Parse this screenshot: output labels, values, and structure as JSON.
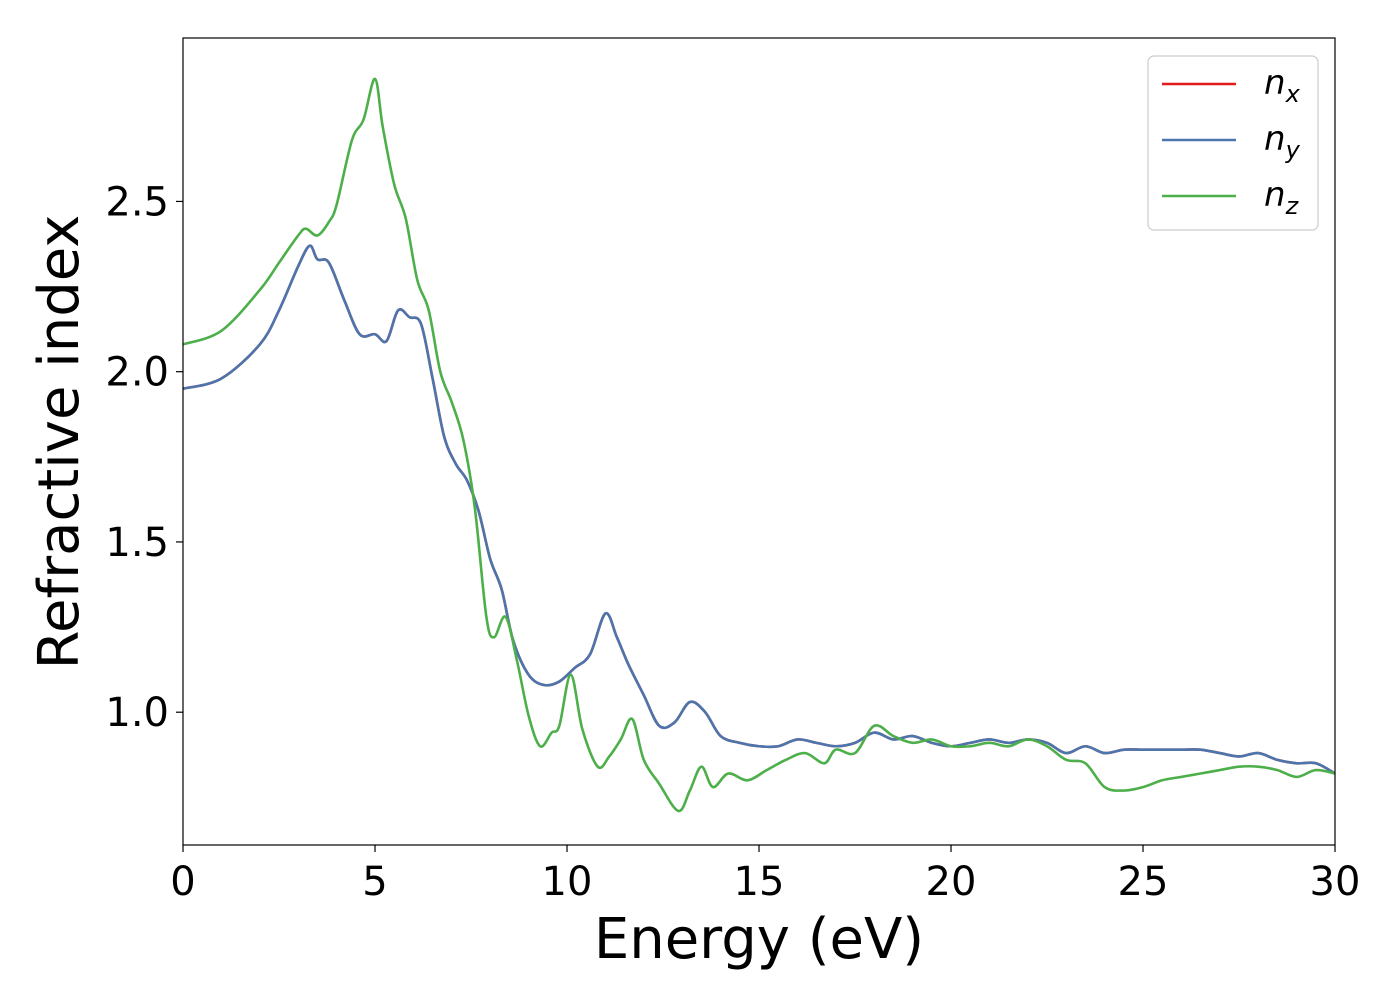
{
  "chart_data": {
    "type": "line",
    "xlabel": "Energy (eV)",
    "ylabel": "Refractive index",
    "xlim": [
      0,
      30
    ],
    "ylim": [
      0.61,
      2.98
    ],
    "xticks": [
      0,
      5,
      10,
      15,
      20,
      25,
      30
    ],
    "xtick_labels": [
      "0",
      "5",
      "10",
      "15",
      "20",
      "25",
      "30"
    ],
    "yticks": [
      1.0,
      1.5,
      2.0,
      2.5
    ],
    "ytick_labels": [
      "1.0",
      "1.5",
      "2.0",
      "2.5"
    ],
    "grid": false,
    "legend_position": "top-right",
    "series": [
      {
        "name": "n_x",
        "base": "n",
        "sub": "x",
        "color": "#e31a1c",
        "x": [
          0,
          1,
          2,
          2.5,
          3,
          3.3,
          3.5,
          3.8,
          4.2,
          4.6,
          5.0,
          5.3,
          5.6,
          5.9,
          6.2,
          6.5,
          6.8,
          7.1,
          7.4,
          7.7,
          8.0,
          8.3,
          8.6,
          9.0,
          9.4,
          9.8,
          10.2,
          10.6,
          11.0,
          11.3,
          11.6,
          12.0,
          12.4,
          12.8,
          13.2,
          13.6,
          14.0,
          14.5,
          15.0,
          15.5,
          16.0,
          16.5,
          17.0,
          17.5,
          18.0,
          18.5,
          19.0,
          19.5,
          20.0,
          20.5,
          21.0,
          21.5,
          22.0,
          22.5,
          23.0,
          23.5,
          24.0,
          24.5,
          25.0,
          25.5,
          26.0,
          26.5,
          27.0,
          27.5,
          28.0,
          28.5,
          29.0,
          29.5,
          30.0
        ],
        "y": [
          1.95,
          1.98,
          2.08,
          2.18,
          2.31,
          2.37,
          2.33,
          2.32,
          2.21,
          2.11,
          2.11,
          2.09,
          2.18,
          2.16,
          2.14,
          1.98,
          1.81,
          1.73,
          1.68,
          1.59,
          1.45,
          1.36,
          1.21,
          1.11,
          1.08,
          1.09,
          1.13,
          1.17,
          1.29,
          1.22,
          1.14,
          1.05,
          0.96,
          0.97,
          1.03,
          1.0,
          0.93,
          0.91,
          0.9,
          0.9,
          0.92,
          0.91,
          0.9,
          0.91,
          0.94,
          0.92,
          0.93,
          0.91,
          0.9,
          0.91,
          0.92,
          0.91,
          0.92,
          0.91,
          0.88,
          0.9,
          0.88,
          0.89,
          0.89,
          0.89,
          0.89,
          0.89,
          0.88,
          0.87,
          0.88,
          0.86,
          0.85,
          0.85,
          0.82
        ]
      },
      {
        "name": "n_y",
        "base": "n",
        "sub": "y",
        "color": "#4a76ad",
        "x": [
          0,
          1,
          2,
          2.5,
          3,
          3.3,
          3.5,
          3.8,
          4.2,
          4.6,
          5.0,
          5.3,
          5.6,
          5.9,
          6.2,
          6.5,
          6.8,
          7.1,
          7.4,
          7.7,
          8.0,
          8.3,
          8.6,
          9.0,
          9.4,
          9.8,
          10.2,
          10.6,
          11.0,
          11.3,
          11.6,
          12.0,
          12.4,
          12.8,
          13.2,
          13.6,
          14.0,
          14.5,
          15.0,
          15.5,
          16.0,
          16.5,
          17.0,
          17.5,
          18.0,
          18.5,
          19.0,
          19.5,
          20.0,
          20.5,
          21.0,
          21.5,
          22.0,
          22.5,
          23.0,
          23.5,
          24.0,
          24.5,
          25.0,
          25.5,
          26.0,
          26.5,
          27.0,
          27.5,
          28.0,
          28.5,
          29.0,
          29.5,
          30.0
        ],
        "y": [
          1.95,
          1.98,
          2.08,
          2.18,
          2.31,
          2.37,
          2.33,
          2.32,
          2.21,
          2.11,
          2.11,
          2.09,
          2.18,
          2.16,
          2.14,
          1.98,
          1.81,
          1.73,
          1.68,
          1.59,
          1.45,
          1.36,
          1.21,
          1.11,
          1.08,
          1.09,
          1.13,
          1.17,
          1.29,
          1.22,
          1.14,
          1.05,
          0.96,
          0.97,
          1.03,
          1.0,
          0.93,
          0.91,
          0.9,
          0.9,
          0.92,
          0.91,
          0.9,
          0.91,
          0.94,
          0.92,
          0.93,
          0.91,
          0.9,
          0.91,
          0.92,
          0.91,
          0.92,
          0.91,
          0.88,
          0.9,
          0.88,
          0.89,
          0.89,
          0.89,
          0.89,
          0.89,
          0.88,
          0.87,
          0.88,
          0.86,
          0.85,
          0.85,
          0.82
        ]
      },
      {
        "name": "n_z",
        "base": "n",
        "sub": "z",
        "color": "#4daf4a",
        "x": [
          0,
          1,
          2,
          2.5,
          3,
          3.2,
          3.5,
          3.8,
          4.0,
          4.4,
          4.7,
          5.0,
          5.2,
          5.5,
          5.8,
          6.1,
          6.4,
          6.7,
          7.0,
          7.3,
          7.6,
          7.9,
          8.1,
          8.4,
          8.7,
          9.0,
          9.3,
          9.6,
          9.8,
          10.1,
          10.4,
          10.8,
          11.1,
          11.4,
          11.7,
          12.0,
          12.4,
          12.9,
          13.2,
          13.5,
          13.8,
          14.2,
          14.7,
          15.2,
          15.7,
          16.2,
          16.7,
          17.0,
          17.5,
          18.0,
          18.5,
          19.0,
          19.5,
          20.0,
          20.5,
          21.0,
          21.5,
          22.0,
          22.5,
          23.0,
          23.5,
          24.0,
          24.5,
          25.0,
          25.5,
          26.0,
          26.5,
          27.0,
          27.5,
          28.0,
          28.5,
          29.0,
          29.5,
          30.0
        ],
        "y": [
          2.08,
          2.12,
          2.24,
          2.32,
          2.4,
          2.42,
          2.4,
          2.44,
          2.49,
          2.68,
          2.74,
          2.86,
          2.72,
          2.55,
          2.45,
          2.27,
          2.18,
          2.0,
          1.91,
          1.8,
          1.6,
          1.28,
          1.22,
          1.28,
          1.15,
          0.99,
          0.9,
          0.94,
          0.96,
          1.11,
          0.95,
          0.84,
          0.87,
          0.92,
          0.98,
          0.86,
          0.79,
          0.71,
          0.77,
          0.84,
          0.78,
          0.82,
          0.8,
          0.83,
          0.86,
          0.88,
          0.85,
          0.89,
          0.88,
          0.96,
          0.93,
          0.91,
          0.92,
          0.9,
          0.9,
          0.91,
          0.9,
          0.92,
          0.9,
          0.86,
          0.85,
          0.78,
          0.77,
          0.78,
          0.8,
          0.81,
          0.82,
          0.83,
          0.84,
          0.84,
          0.83,
          0.81,
          0.83,
          0.82
        ]
      }
    ]
  }
}
